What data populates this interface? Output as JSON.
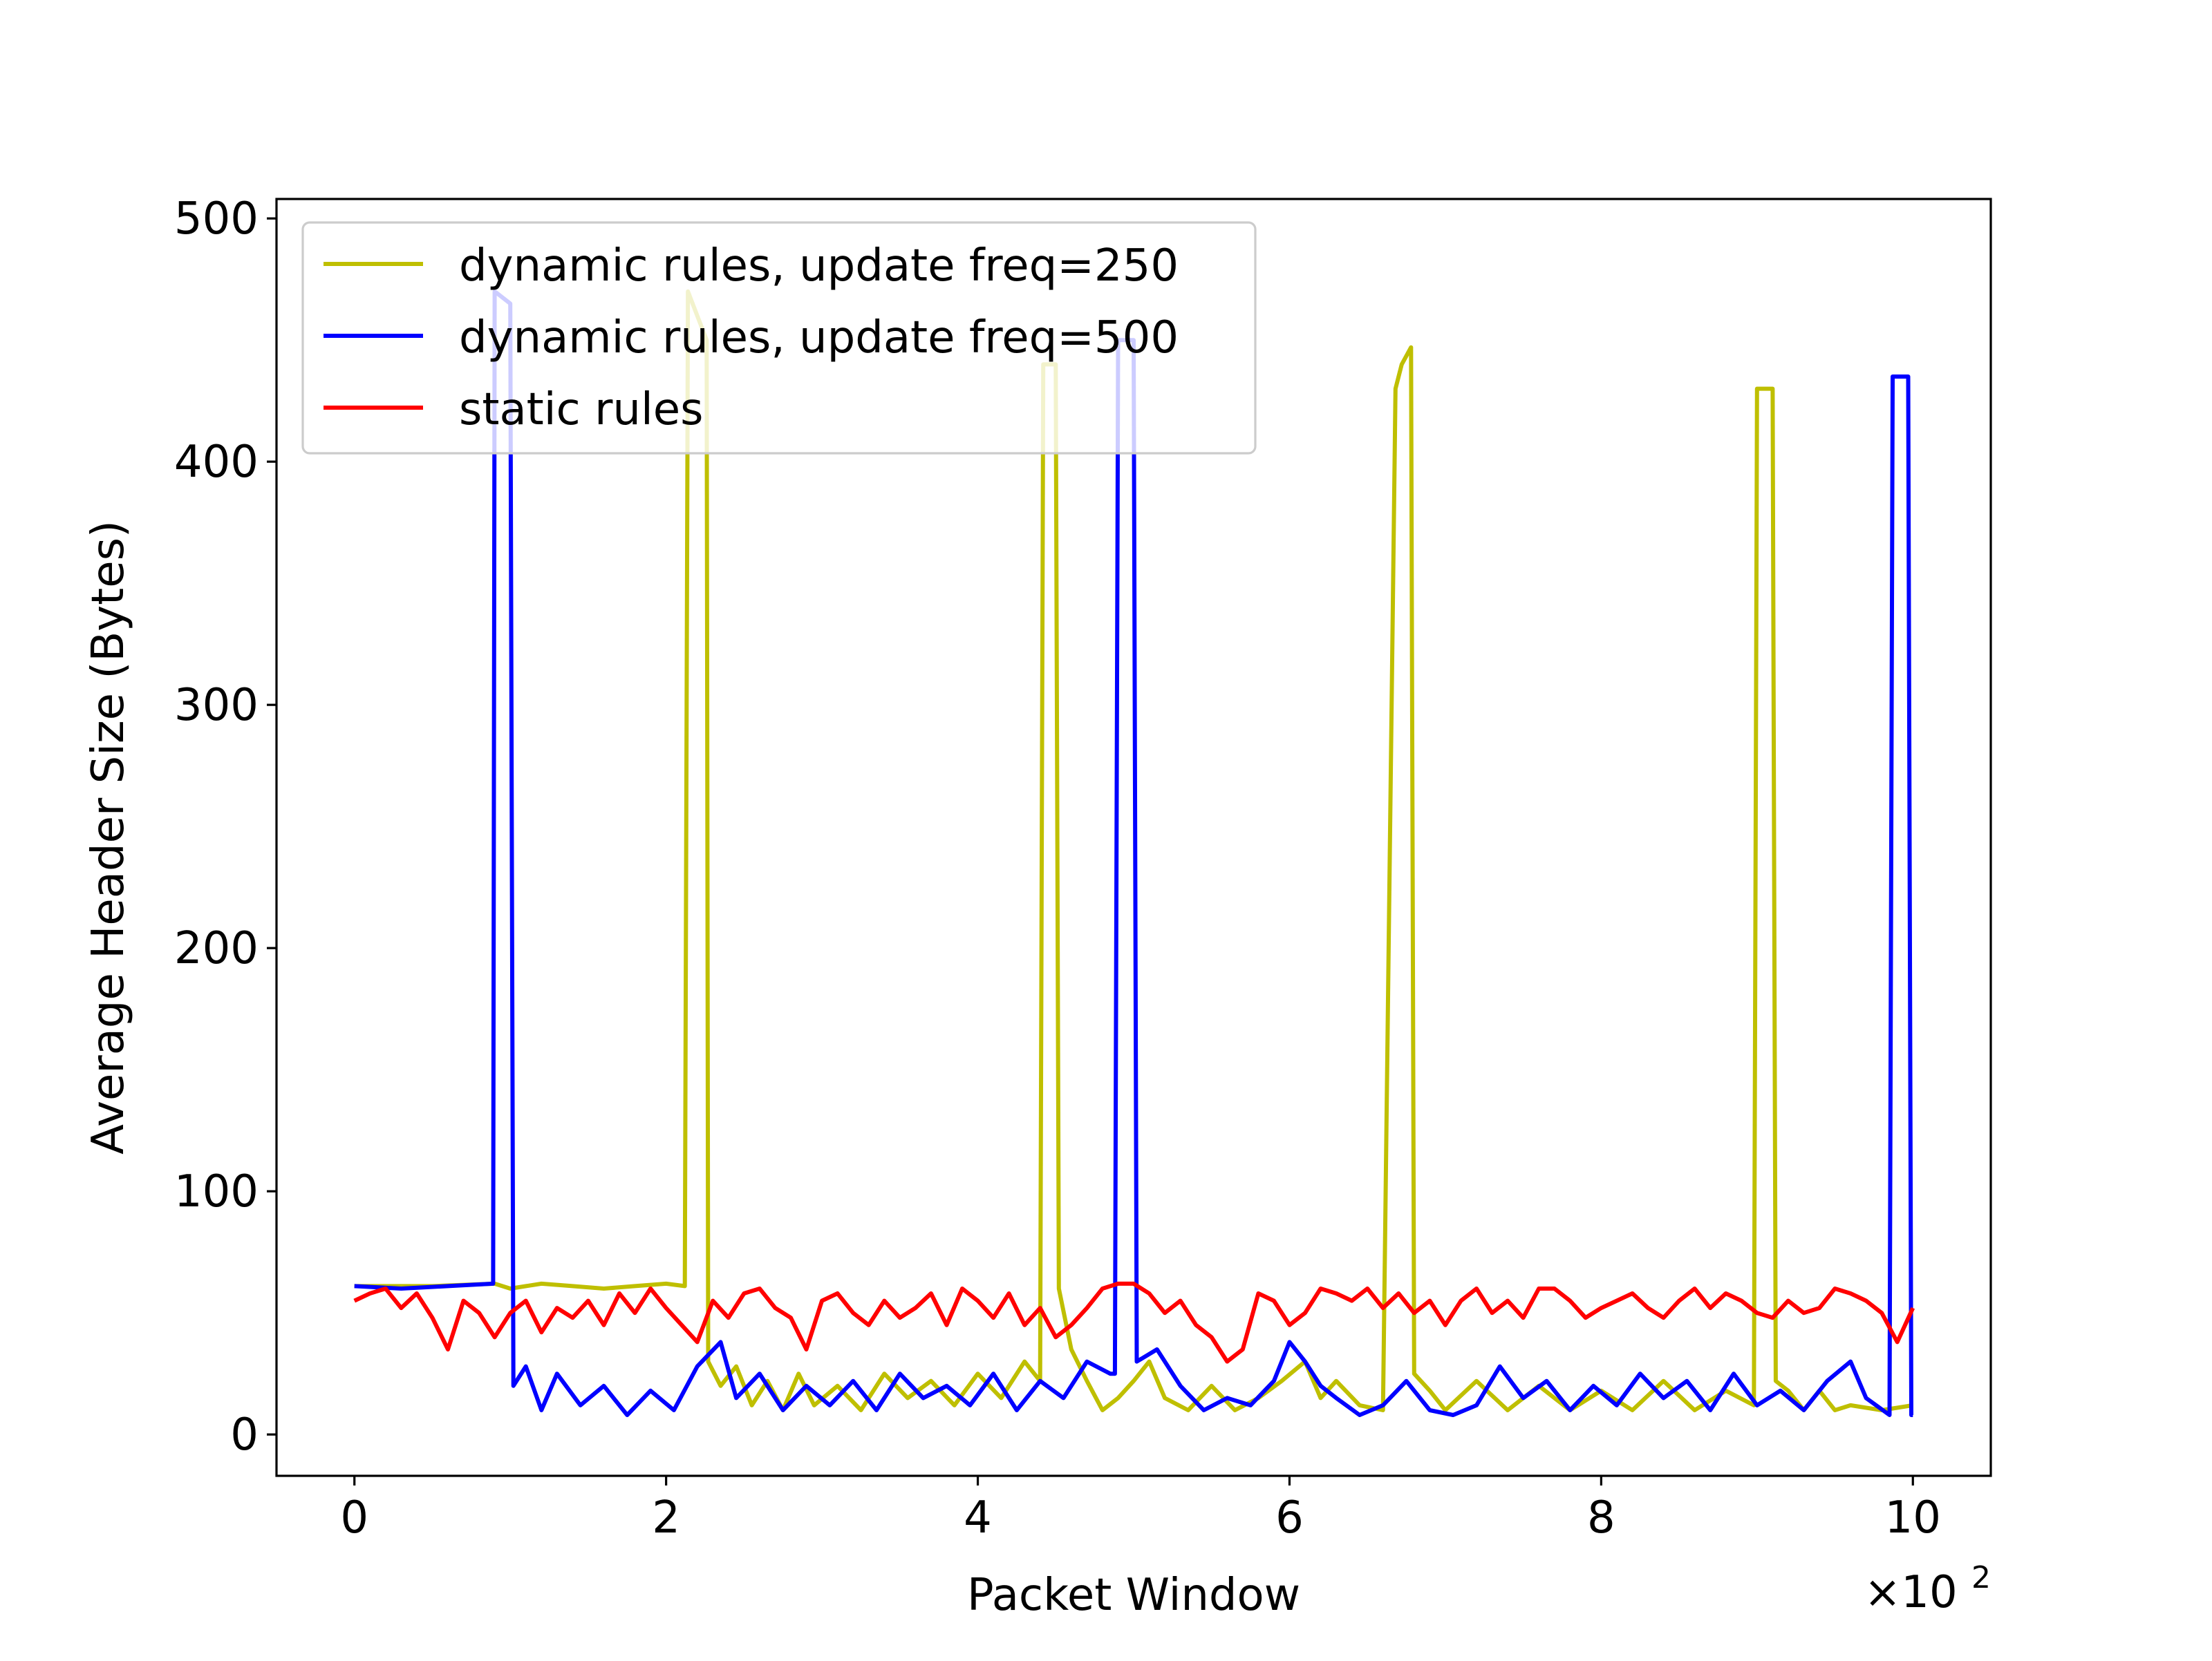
{
  "chart_data": {
    "type": "line",
    "title": "",
    "xlabel": "Packet Window",
    "ylabel": "Average Header Size (Bytes)",
    "x_multiplier_label": "×10",
    "x_multiplier_exp": "2",
    "xlim": [
      -0.5,
      10.5
    ],
    "ylim": [
      -17,
      508
    ],
    "xticks": [
      0,
      2,
      4,
      6,
      8,
      10
    ],
    "xtick_labels": [
      "0",
      "2",
      "4",
      "6",
      "8",
      "10"
    ],
    "yticks": [
      0,
      100,
      200,
      300,
      400,
      500
    ],
    "ytick_labels": [
      "0",
      "100",
      "200",
      "300",
      "400",
      "500"
    ],
    "grid": false,
    "legend_position": "upper-left",
    "series": [
      {
        "name": "dynamic rules, update freq=250",
        "color": "#bfbf00",
        "points": [
          [
            0,
            61
          ],
          [
            0.5,
            61
          ],
          [
            0.9,
            62
          ],
          [
            1.0,
            60
          ],
          [
            1.2,
            62
          ],
          [
            1.4,
            61
          ],
          [
            1.6,
            60
          ],
          [
            1.8,
            61
          ],
          [
            2.0,
            62
          ],
          [
            2.12,
            61
          ],
          [
            2.14,
            470
          ],
          [
            2.2,
            460
          ],
          [
            2.26,
            450
          ],
          [
            2.27,
            30
          ],
          [
            2.35,
            20
          ],
          [
            2.45,
            28
          ],
          [
            2.55,
            12
          ],
          [
            2.65,
            22
          ],
          [
            2.75,
            10
          ],
          [
            2.85,
            25
          ],
          [
            2.95,
            12
          ],
          [
            3.1,
            20
          ],
          [
            3.25,
            10
          ],
          [
            3.4,
            25
          ],
          [
            3.55,
            15
          ],
          [
            3.7,
            22
          ],
          [
            3.85,
            12
          ],
          [
            4.0,
            25
          ],
          [
            4.15,
            15
          ],
          [
            4.3,
            30
          ],
          [
            4.4,
            22
          ],
          [
            4.42,
            440
          ],
          [
            4.5,
            440
          ],
          [
            4.52,
            60
          ],
          [
            4.6,
            35
          ],
          [
            4.7,
            22
          ],
          [
            4.8,
            10
          ],
          [
            4.9,
            15
          ],
          [
            5.0,
            22
          ],
          [
            5.1,
            30
          ],
          [
            5.2,
            15
          ],
          [
            5.35,
            10
          ],
          [
            5.5,
            20
          ],
          [
            5.65,
            10
          ],
          [
            5.8,
            15
          ],
          [
            5.95,
            22
          ],
          [
            6.1,
            30
          ],
          [
            6.2,
            15
          ],
          [
            6.3,
            22
          ],
          [
            6.45,
            12
          ],
          [
            6.6,
            10
          ],
          [
            6.68,
            430
          ],
          [
            6.72,
            440
          ],
          [
            6.78,
            447
          ],
          [
            6.8,
            25
          ],
          [
            6.9,
            18
          ],
          [
            7.0,
            10
          ],
          [
            7.2,
            22
          ],
          [
            7.4,
            10
          ],
          [
            7.6,
            20
          ],
          [
            7.8,
            10
          ],
          [
            8.0,
            18
          ],
          [
            8.2,
            10
          ],
          [
            8.4,
            22
          ],
          [
            8.6,
            10
          ],
          [
            8.8,
            18
          ],
          [
            8.98,
            12
          ],
          [
            9.0,
            430
          ],
          [
            9.1,
            430
          ],
          [
            9.12,
            22
          ],
          [
            9.2,
            18
          ],
          [
            9.3,
            10
          ],
          [
            9.4,
            18
          ],
          [
            9.5,
            10
          ],
          [
            9.6,
            12
          ],
          [
            9.8,
            10
          ],
          [
            10.0,
            12
          ]
        ]
      },
      {
        "name": "dynamic rules, update freq=500",
        "color": "#0000ff",
        "points": [
          [
            0,
            61
          ],
          [
            0.3,
            60
          ],
          [
            0.6,
            61
          ],
          [
            0.89,
            62
          ],
          [
            0.9,
            470
          ],
          [
            1.0,
            465
          ],
          [
            1.02,
            20
          ],
          [
            1.1,
            28
          ],
          [
            1.2,
            10
          ],
          [
            1.3,
            25
          ],
          [
            1.45,
            12
          ],
          [
            1.6,
            20
          ],
          [
            1.75,
            8
          ],
          [
            1.9,
            18
          ],
          [
            2.05,
            10
          ],
          [
            2.2,
            28
          ],
          [
            2.35,
            38
          ],
          [
            2.45,
            15
          ],
          [
            2.6,
            25
          ],
          [
            2.75,
            10
          ],
          [
            2.9,
            20
          ],
          [
            3.05,
            12
          ],
          [
            3.2,
            22
          ],
          [
            3.35,
            10
          ],
          [
            3.5,
            25
          ],
          [
            3.65,
            15
          ],
          [
            3.8,
            20
          ],
          [
            3.95,
            12
          ],
          [
            4.1,
            25
          ],
          [
            4.25,
            10
          ],
          [
            4.4,
            22
          ],
          [
            4.55,
            15
          ],
          [
            4.7,
            30
          ],
          [
            4.85,
            25
          ],
          [
            4.88,
            25
          ],
          [
            4.9,
            450
          ],
          [
            5.0,
            450
          ],
          [
            5.02,
            30
          ],
          [
            5.15,
            35
          ],
          [
            5.3,
            20
          ],
          [
            5.45,
            10
          ],
          [
            5.6,
            15
          ],
          [
            5.75,
            12
          ],
          [
            5.9,
            22
          ],
          [
            6.0,
            38
          ],
          [
            6.1,
            30
          ],
          [
            6.2,
            20
          ],
          [
            6.3,
            15
          ],
          [
            6.45,
            8
          ],
          [
            6.6,
            12
          ],
          [
            6.75,
            22
          ],
          [
            6.9,
            10
          ],
          [
            7.05,
            8
          ],
          [
            7.2,
            12
          ],
          [
            7.35,
            28
          ],
          [
            7.5,
            15
          ],
          [
            7.65,
            22
          ],
          [
            7.8,
            10
          ],
          [
            7.95,
            20
          ],
          [
            8.1,
            12
          ],
          [
            8.25,
            25
          ],
          [
            8.4,
            15
          ],
          [
            8.55,
            22
          ],
          [
            8.7,
            10
          ],
          [
            8.85,
            25
          ],
          [
            9.0,
            12
          ],
          [
            9.15,
            18
          ],
          [
            9.3,
            10
          ],
          [
            9.45,
            22
          ],
          [
            9.6,
            30
          ],
          [
            9.7,
            15
          ],
          [
            9.85,
            8
          ],
          [
            9.87,
            435
          ],
          [
            9.97,
            435
          ],
          [
            9.99,
            8
          ],
          [
            10.0,
            8
          ]
        ]
      },
      {
        "name": "static rules",
        "color": "#ff0000",
        "points": [
          [
            0,
            55
          ],
          [
            0.1,
            58
          ],
          [
            0.2,
            60
          ],
          [
            0.3,
            52
          ],
          [
            0.4,
            58
          ],
          [
            0.5,
            48
          ],
          [
            0.6,
            35
          ],
          [
            0.7,
            55
          ],
          [
            0.8,
            50
          ],
          [
            0.9,
            40
          ],
          [
            1.0,
            50
          ],
          [
            1.1,
            55
          ],
          [
            1.2,
            42
          ],
          [
            1.3,
            52
          ],
          [
            1.4,
            48
          ],
          [
            1.5,
            55
          ],
          [
            1.6,
            45
          ],
          [
            1.7,
            58
          ],
          [
            1.8,
            50
          ],
          [
            1.9,
            60
          ],
          [
            2.0,
            52
          ],
          [
            2.1,
            45
          ],
          [
            2.2,
            38
          ],
          [
            2.3,
            55
          ],
          [
            2.4,
            48
          ],
          [
            2.5,
            58
          ],
          [
            2.6,
            60
          ],
          [
            2.7,
            52
          ],
          [
            2.8,
            48
          ],
          [
            2.9,
            35
          ],
          [
            3.0,
            55
          ],
          [
            3.1,
            58
          ],
          [
            3.2,
            50
          ],
          [
            3.3,
            45
          ],
          [
            3.4,
            55
          ],
          [
            3.5,
            48
          ],
          [
            3.6,
            52
          ],
          [
            3.7,
            58
          ],
          [
            3.8,
            45
          ],
          [
            3.9,
            60
          ],
          [
            4.0,
            55
          ],
          [
            4.1,
            48
          ],
          [
            4.2,
            58
          ],
          [
            4.3,
            45
          ],
          [
            4.4,
            52
          ],
          [
            4.5,
            40
          ],
          [
            4.6,
            45
          ],
          [
            4.7,
            52
          ],
          [
            4.8,
            60
          ],
          [
            4.9,
            62
          ],
          [
            5.0,
            62
          ],
          [
            5.1,
            58
          ],
          [
            5.2,
            50
          ],
          [
            5.3,
            55
          ],
          [
            5.4,
            45
          ],
          [
            5.5,
            40
          ],
          [
            5.6,
            30
          ],
          [
            5.7,
            35
          ],
          [
            5.8,
            58
          ],
          [
            5.9,
            55
          ],
          [
            6.0,
            45
          ],
          [
            6.1,
            50
          ],
          [
            6.2,
            60
          ],
          [
            6.3,
            58
          ],
          [
            6.4,
            55
          ],
          [
            6.5,
            60
          ],
          [
            6.6,
            52
          ],
          [
            6.7,
            58
          ],
          [
            6.8,
            50
          ],
          [
            6.9,
            55
          ],
          [
            7.0,
            45
          ],
          [
            7.1,
            55
          ],
          [
            7.2,
            60
          ],
          [
            7.3,
            50
          ],
          [
            7.4,
            55
          ],
          [
            7.5,
            48
          ],
          [
            7.6,
            60
          ],
          [
            7.7,
            60
          ],
          [
            7.8,
            55
          ],
          [
            7.9,
            48
          ],
          [
            8.0,
            52
          ],
          [
            8.1,
            55
          ],
          [
            8.2,
            58
          ],
          [
            8.3,
            52
          ],
          [
            8.4,
            48
          ],
          [
            8.5,
            55
          ],
          [
            8.6,
            60
          ],
          [
            8.7,
            52
          ],
          [
            8.8,
            58
          ],
          [
            8.9,
            55
          ],
          [
            9.0,
            50
          ],
          [
            9.1,
            48
          ],
          [
            9.2,
            55
          ],
          [
            9.3,
            50
          ],
          [
            9.4,
            52
          ],
          [
            9.5,
            60
          ],
          [
            9.6,
            58
          ],
          [
            9.7,
            55
          ],
          [
            9.8,
            50
          ],
          [
            9.9,
            38
          ],
          [
            10.0,
            52
          ]
        ]
      }
    ]
  }
}
